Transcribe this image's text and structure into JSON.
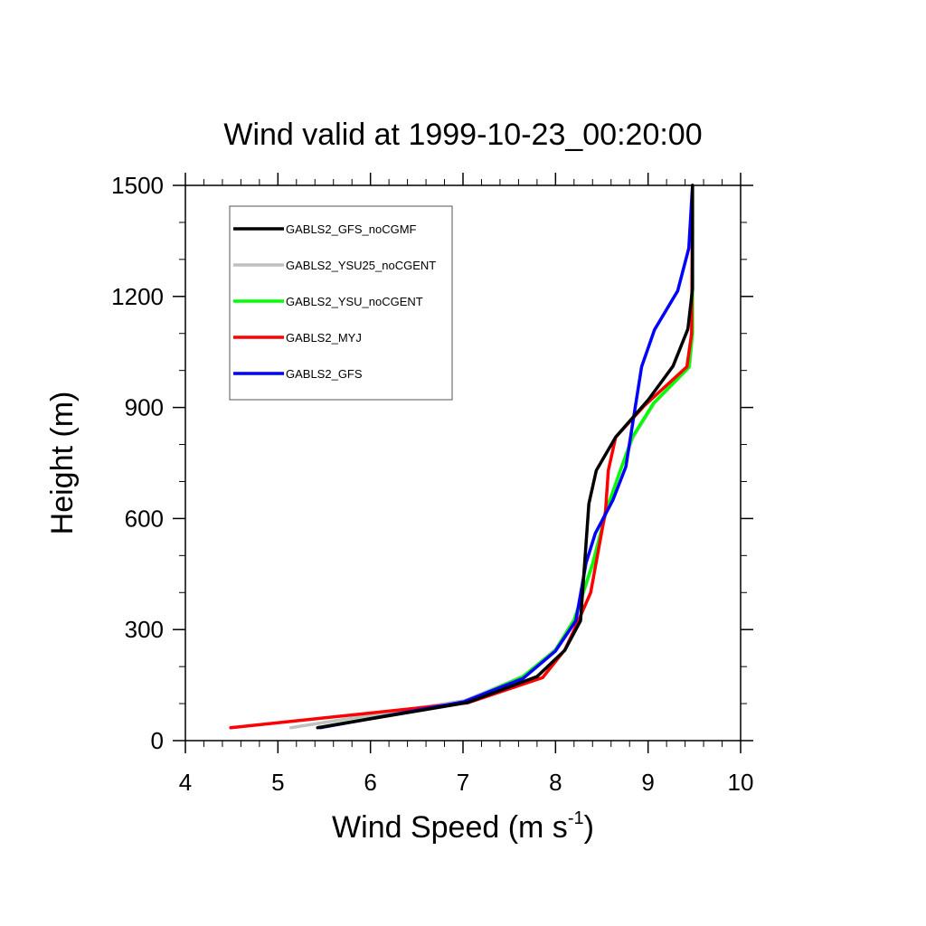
{
  "chart_data": {
    "type": "line",
    "title": "Wind valid at 1999-10-23_00:20:00",
    "xlabel": "Wind Speed (m s",
    "xlabel_superscript": "-1",
    "xlabel_suffix": ")",
    "ylabel": "Height (m)",
    "xlim": [
      4,
      10
    ],
    "ylim": [
      0,
      1500
    ],
    "x_ticks": [
      4,
      5,
      6,
      7,
      8,
      9,
      10
    ],
    "y_ticks": [
      0,
      300,
      600,
      900,
      1200,
      1500
    ],
    "legend_position": "top-left",
    "grid": false,
    "series": [
      {
        "name": "GABLS2_GFS_noCGMF",
        "color": "#000000",
        "points": [
          [
            5.43,
            35
          ],
          [
            7.05,
            103
          ],
          [
            7.8,
            173
          ],
          [
            8.1,
            244
          ],
          [
            8.27,
            324
          ],
          [
            8.36,
            640
          ],
          [
            8.44,
            730
          ],
          [
            8.65,
            820
          ],
          [
            9.0,
            920
          ],
          [
            9.27,
            1012
          ],
          [
            9.43,
            1112
          ],
          [
            9.48,
            1220
          ],
          [
            9.48,
            1500
          ]
        ]
      },
      {
        "name": "GABLS2_YSU25_noCGENT",
        "color": "#c0c0c0",
        "points": [
          [
            5.14,
            35
          ],
          [
            7.02,
            108
          ],
          [
            7.66,
            175
          ],
          [
            8.0,
            247
          ],
          [
            8.21,
            330
          ],
          [
            8.41,
            480
          ],
          [
            8.56,
            630
          ],
          [
            8.7,
            730
          ],
          [
            8.84,
            820
          ],
          [
            9.07,
            912
          ],
          [
            9.45,
            1010
          ],
          [
            9.48,
            1100
          ],
          [
            9.48,
            1500
          ]
        ]
      },
      {
        "name": "GABLS2_YSU_noCGENT",
        "color": "#00ff00",
        "points": [
          [
            5.43,
            35
          ],
          [
            7.03,
            105
          ],
          [
            7.64,
            172
          ],
          [
            8.0,
            244
          ],
          [
            8.2,
            326
          ],
          [
            8.4,
            478
          ],
          [
            8.56,
            630
          ],
          [
            8.7,
            730
          ],
          [
            8.83,
            820
          ],
          [
            9.06,
            912
          ],
          [
            9.44,
            1008
          ],
          [
            9.48,
            1100
          ],
          [
            9.48,
            1500
          ]
        ]
      },
      {
        "name": "GABLS2_MYJ",
        "color": "#ff0000",
        "points": [
          [
            4.49,
            35
          ],
          [
            7.05,
            102
          ],
          [
            7.86,
            170
          ],
          [
            8.1,
            245
          ],
          [
            8.24,
            320
          ],
          [
            8.38,
            400
          ],
          [
            8.54,
            620
          ],
          [
            8.57,
            730
          ],
          [
            8.65,
            820
          ],
          [
            8.96,
            905
          ],
          [
            9.42,
            1010
          ],
          [
            9.47,
            1100
          ],
          [
            9.48,
            1500
          ]
        ]
      },
      {
        "name": "GABLS2_GFS",
        "color": "#0000ff",
        "points": [
          [
            5.46,
            35
          ],
          [
            7.01,
            105
          ],
          [
            7.65,
            168
          ],
          [
            8.0,
            242
          ],
          [
            8.22,
            324
          ],
          [
            8.33,
            480
          ],
          [
            8.43,
            560
          ],
          [
            8.62,
            650
          ],
          [
            8.76,
            740
          ],
          [
            8.93,
            1010
          ],
          [
            9.07,
            1110
          ],
          [
            9.32,
            1215
          ],
          [
            9.44,
            1330
          ],
          [
            9.48,
            1500
          ]
        ]
      }
    ]
  }
}
